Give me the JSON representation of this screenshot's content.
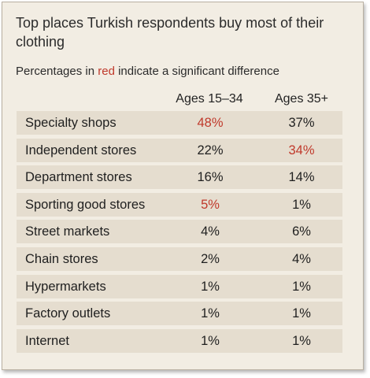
{
  "chart_data": {
    "type": "table",
    "title": "Top places Turkish respondents buy most of their clothing",
    "subtitle": {
      "before": "Percentages in ",
      "highlight": "red",
      "after": " indicate a significant difference"
    },
    "columns": [
      "Ages 15–34",
      "Ages 35+"
    ],
    "rows": [
      {
        "category": "Specialty shops",
        "values": [
          "48%",
          "37%"
        ],
        "significant": [
          true,
          false
        ]
      },
      {
        "category": "Independent stores",
        "values": [
          "22%",
          "34%"
        ],
        "significant": [
          false,
          true
        ]
      },
      {
        "category": "Department stores",
        "values": [
          "16%",
          "14%"
        ],
        "significant": [
          false,
          false
        ]
      },
      {
        "category": "Sporting good stores",
        "values": [
          "5%",
          "1%"
        ],
        "significant": [
          true,
          false
        ]
      },
      {
        "category": "Street markets",
        "values": [
          "4%",
          "6%"
        ],
        "significant": [
          false,
          false
        ]
      },
      {
        "category": "Chain stores",
        "values": [
          "2%",
          "4%"
        ],
        "significant": [
          false,
          false
        ]
      },
      {
        "category": "Hypermarkets",
        "values": [
          "1%",
          "1%"
        ],
        "significant": [
          false,
          false
        ]
      },
      {
        "category": "Factory outlets",
        "values": [
          "1%",
          "1%"
        ],
        "significant": [
          false,
          false
        ]
      },
      {
        "category": "Internet",
        "values": [
          "1%",
          "1%"
        ],
        "significant": [
          false,
          false
        ]
      }
    ],
    "colors": {
      "background": "#f2ede3",
      "row_band": "#e5ddcf",
      "significant": "#c0392b",
      "text": "#1f1f1f"
    }
  }
}
